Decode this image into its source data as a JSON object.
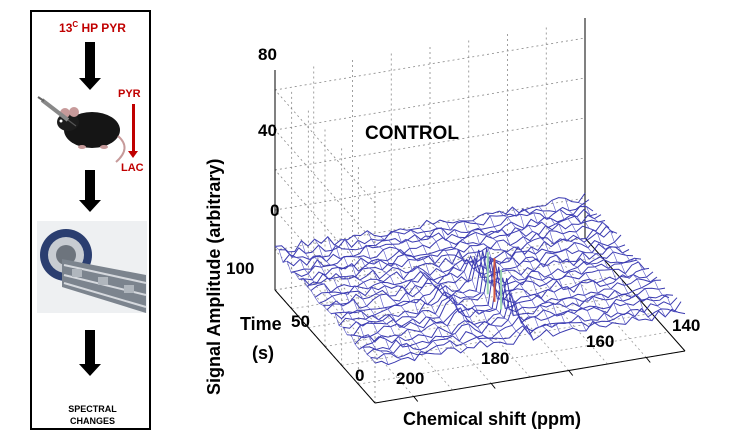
{
  "workflow": {
    "title_sup": "C",
    "title_num": "13",
    "title_rest": " HP PYR",
    "pyr_label": "PYR",
    "lac_label": "LAC",
    "result_line1": "SPECTRAL",
    "result_line2": "CHANGES",
    "accent_color": "#c00000"
  },
  "chart_data": {
    "type": "3d-waterfall",
    "title": "CONTROL",
    "xlabel": "Chemical shift (ppm)",
    "ylabel": "Signal Amplitude (arbitrary)",
    "zlabel_line1": "Time",
    "zlabel_line2": "(s)",
    "x_ticks": [
      "200",
      "180",
      "160",
      "140"
    ],
    "x_range": [
      210,
      130
    ],
    "time_ticks": [
      "0",
      "50",
      "100"
    ],
    "time_range": [
      0,
      120
    ],
    "y_ticks": [
      "0",
      "40",
      "80"
    ],
    "y_range": [
      -20,
      80
    ],
    "peaks": [
      {
        "name": "pyruvate",
        "ppm": 171,
        "max_amplitude": 22
      },
      {
        "name": "lactate",
        "ppm": 183,
        "max_amplitude": 8
      }
    ],
    "line_color": "#3a3ab0"
  }
}
